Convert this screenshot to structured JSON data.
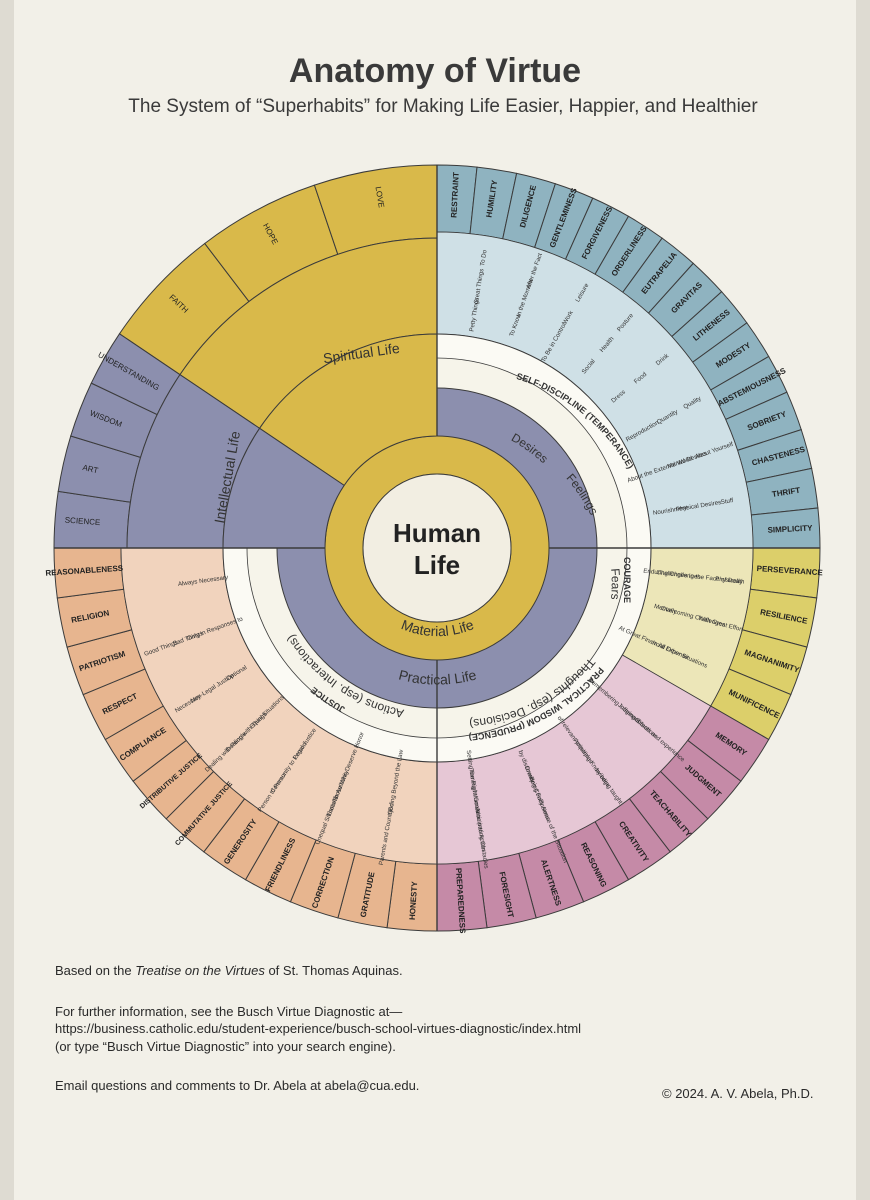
{
  "title": "Anatomy of Virtue",
  "subtitle": "The System of “Superhabits” for Making Life Easier, Happier, and Healthier",
  "center": {
    "line1": "Human",
    "line2": "Life"
  },
  "colors": {
    "gold": "#d9b94a",
    "slate": "#8c8fae",
    "teal": "#8fb3c0",
    "peach": "#e7b58f",
    "yellow": "#dccf6a",
    "mauve": "#c58aa7",
    "cream": "#f2eee2"
  },
  "rings": {
    "material": "Material Life",
    "practical": "Practical Life",
    "spiritual": "Spiritual Life",
    "intellectual": "Intellectual Life"
  },
  "faculties": {
    "desires": "Desires",
    "feelings": "Feelings",
    "fears": "Fears",
    "thoughts": "Thoughts (esp. Decisions)",
    "actions": "Actions (esp. Interactions)"
  },
  "cardinal": {
    "temperance": "SELF-DISCIPLINE (TEMPERANCE)",
    "courage": "COURAGE",
    "prudence": "PRACTICAL WISDOM (PRUDENCE)",
    "justice": "JUSTICE"
  },
  "spiritual_virtues": [
    "FAITH",
    "HOPE",
    "LOVE"
  ],
  "intellectual_virtues": [
    "SCIENCE",
    "ART",
    "WISDOM",
    "UNDERSTANDING"
  ],
  "temperance_virtues": [
    "RESTRAINT",
    "HUMILITY",
    "DILIGENCE",
    "GENTLEMINESS",
    "FORGIVENESS",
    "ORDERLINESS",
    "EUTRAPELIA",
    "GRAVITAS",
    "LITHENESS",
    "MODESTY",
    "ABSTEMIOUSNESS",
    "SOBRIETY",
    "CHASTENESS",
    "THRIFT",
    "SIMPLICITY"
  ],
  "courage_virtues": [
    "PERSEVERANCE",
    "RESILIENCE",
    "MAGNANIMITY",
    "MUNIFICENCE"
  ],
  "prudence_virtues": [
    "MEMORY",
    "JUDGMENT",
    "TEACHABILITY",
    "CREATIVITY",
    "REASONING",
    "ALERTNESS",
    "FORESIGHT",
    "PREPAREDNESS"
  ],
  "justice_virtues": [
    "HONESTY",
    "GRATITUDE",
    "CORRECTION",
    "FRIENDLINESS",
    "GENEROSITY",
    "COMMUTATIVE JUSTICE",
    "DISTRIBUTIVE JUSTICE",
    "COMPLIANCE",
    "RESPECT",
    "PATRIOTISM",
    "RELIGION",
    "REASONABLENESS"
  ],
  "temperance_groups": [
    "Petty Things",
    "Great Things",
    "To Do",
    "To Know",
    "In the Moment",
    "After the Fact",
    "To Be in Control",
    "Work",
    "Leisure",
    "Social",
    "Health",
    "Posture",
    "Dress",
    "Food",
    "Drink",
    "Reproduction",
    "Quantity",
    "Quality",
    "About the External World",
    "Mental Desires",
    "About Yourself",
    "Nourishment",
    "Physical Desires",
    "Stuff"
  ],
  "courage_groups": [
    "Enduring Challenges",
    "Challenges in the Face of Death",
    "Physically",
    "Mentally",
    "Overcoming Challenges",
    "With Great Effort",
    "At Great Financial Expense",
    "In All Other Situations"
  ],
  "prudence_groups": [
    "Remembering Information",
    "Judging Situations",
    "of facts and experience",
    "of relevant principles",
    "Acquiring Knowledge",
    "by being taught",
    "by discovery",
    "Drawing Conclusions",
    "Being Fully Aware of the Situation",
    "Setting the Right Goals",
    "Turning Information into Action",
    "Anticipating Obstacles"
  ],
  "justice_groups": [
    "Going Beyond the Law",
    "God",
    "Parents and Country",
    "Those Who Deserve Honor",
    "Those in Authority",
    "Unequal Situations",
    "Legal Justice",
    "Community to Person",
    "Person to Person",
    "Equal Situations",
    "Dealing with Things",
    "Dealing with People",
    "Optional",
    "Non-Legal Justice",
    "Necessary",
    "Only in Responses to",
    "Bad Things",
    "Good Things",
    "Always Necessary"
  ],
  "footer": {
    "line1_pre": "Based on the ",
    "line1_italic": "Treatise on the Virtues",
    "line1_post": " of St. Thomas Aquinas.",
    "line2": "For further information, see the Busch Virtue Diagnostic at—",
    "line3": "https://business.catholic.edu/student-experience/busch-school-virtues-diagnostic/index.html",
    "line4": "(or type “Busch Virtue Diagnostic” into your search engine).",
    "line5": "Email questions and comments to Dr. Abela at abela@cua.edu.",
    "copyright": "© 2024. A. V. Abela, Ph.D."
  }
}
